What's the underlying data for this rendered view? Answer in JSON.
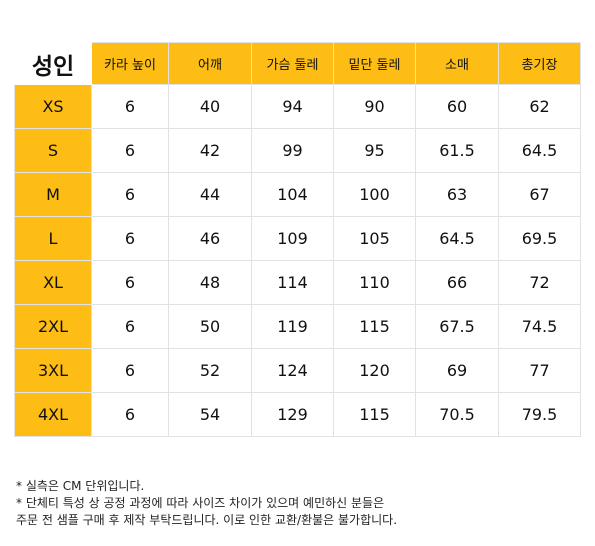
{
  "table": {
    "corner_label": "성인",
    "columns": [
      "카라 높이",
      "어깨",
      "가슴 둘레",
      "밑단 둘레",
      "소매",
      "총기장"
    ],
    "rows": [
      {
        "size": "XS",
        "values": [
          "6",
          "40",
          "94",
          "90",
          "60",
          "62"
        ]
      },
      {
        "size": "S",
        "values": [
          "6",
          "42",
          "99",
          "95",
          "61.5",
          "64.5"
        ]
      },
      {
        "size": "M",
        "values": [
          "6",
          "44",
          "104",
          "100",
          "63",
          "67"
        ]
      },
      {
        "size": "L",
        "values": [
          "6",
          "46",
          "109",
          "105",
          "64.5",
          "69.5"
        ]
      },
      {
        "size": "XL",
        "values": [
          "6",
          "48",
          "114",
          "110",
          "66",
          "72"
        ]
      },
      {
        "size": "2XL",
        "values": [
          "6",
          "50",
          "119",
          "115",
          "67.5",
          "74.5"
        ]
      },
      {
        "size": "3XL",
        "values": [
          "6",
          "52",
          "124",
          "120",
          "69",
          "77"
        ]
      },
      {
        "size": "4XL",
        "values": [
          "6",
          "54",
          "129",
          "115",
          "70.5",
          "79.5"
        ]
      }
    ]
  },
  "notes": [
    "* 실측은 CM 단위입니다.",
    "* 단체티 특성 상 공정 과정에 따라 사이즈 차이가 있으며 예민하신 분들은",
    "주문 전 샘플 구매 후 제작 부탁드립니다. 이로 인한 교환/환불은 불가합니다."
  ],
  "colors": {
    "header_bg": "#fdbd14",
    "cell_bg": "#ffffff",
    "border": "#e2e2e2"
  }
}
